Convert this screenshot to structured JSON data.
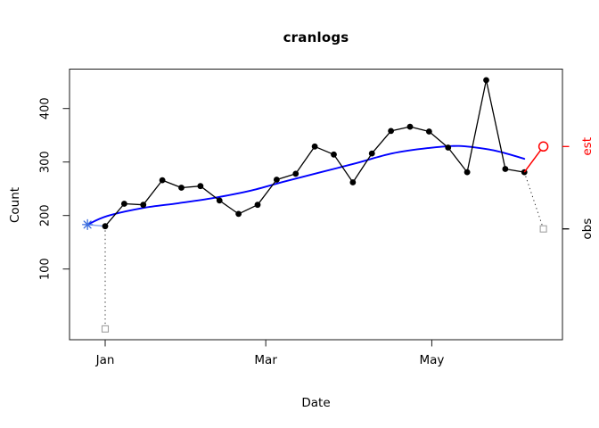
{
  "chart_data": {
    "type": "line",
    "title": "cranlogs",
    "xlabel": "Date",
    "ylabel": "Count",
    "x_axis": {
      "tick_labels": [
        "Jan",
        "Mar",
        "May"
      ],
      "tick_day_offsets": [
        0,
        59,
        120
      ],
      "unit": "days from Jan 1"
    },
    "y_axis": {
      "ticks": [
        100,
        200,
        300,
        400
      ],
      "range": [
        -32,
        473
      ]
    },
    "grid": false,
    "legend": "none",
    "series": [
      {
        "name": "obs-drop-start",
        "type": "dotted-line",
        "color": "#303030",
        "end_marker": "open-square",
        "end_marker_color": "#a0a0a0",
        "days": [
          0,
          0
        ],
        "values": [
          180,
          -12
        ]
      },
      {
        "name": "obs-drop-end",
        "type": "dotted-line",
        "color": "#303030",
        "end_marker": "open-square",
        "end_marker_color": "#a0a0a0",
        "days": [
          154,
          161
        ],
        "values": [
          281,
          175
        ]
      },
      {
        "name": "start-connector",
        "type": "line",
        "color": "#8aa7ee",
        "days": [
          -6.5,
          0
        ],
        "values": [
          183,
          180
        ]
      },
      {
        "name": "smoothed-trend",
        "type": "smooth-line",
        "color": "#0000ff",
        "days": [
          -6.5,
          0.7,
          13.8,
          26.9,
          40,
          53.1,
          66.2,
          79.3,
          92.3,
          105.4,
          118.5,
          130,
          141.5,
          148,
          154
        ],
        "values": [
          183,
          199,
          214,
          223,
          233,
          246,
          264,
          281,
          298,
          316,
          326,
          330,
          323,
          315,
          306
        ]
      },
      {
        "name": "observed-weekly-counts",
        "type": "line+markers",
        "color": "#000000",
        "marker": "filled-circle",
        "days": [
          0,
          7,
          14,
          21,
          28,
          35,
          42,
          49,
          56,
          63,
          70,
          77,
          84,
          91,
          98,
          105,
          112,
          119,
          126,
          133,
          140,
          147,
          154
        ],
        "values": [
          180,
          222,
          220,
          266,
          252,
          255,
          228,
          203,
          220,
          267,
          278,
          329,
          314,
          262,
          316,
          358,
          366,
          357,
          327,
          281,
          453,
          287,
          281
        ]
      },
      {
        "name": "estimate-segment",
        "type": "line",
        "color": "#ff0000",
        "end_marker": "open-circle",
        "end_marker_color": "#ff0000",
        "days": [
          154,
          161
        ],
        "values": [
          281,
          329
        ]
      }
    ],
    "start_marker": {
      "shape": "asterisk",
      "color": "#3e6fde",
      "day": -6.5,
      "value": 183
    },
    "right_axis_labels": [
      {
        "label": "est",
        "color": "#ff0000",
        "value": 329
      },
      {
        "label": "obs",
        "color": "#000000",
        "value": 175
      }
    ]
  }
}
